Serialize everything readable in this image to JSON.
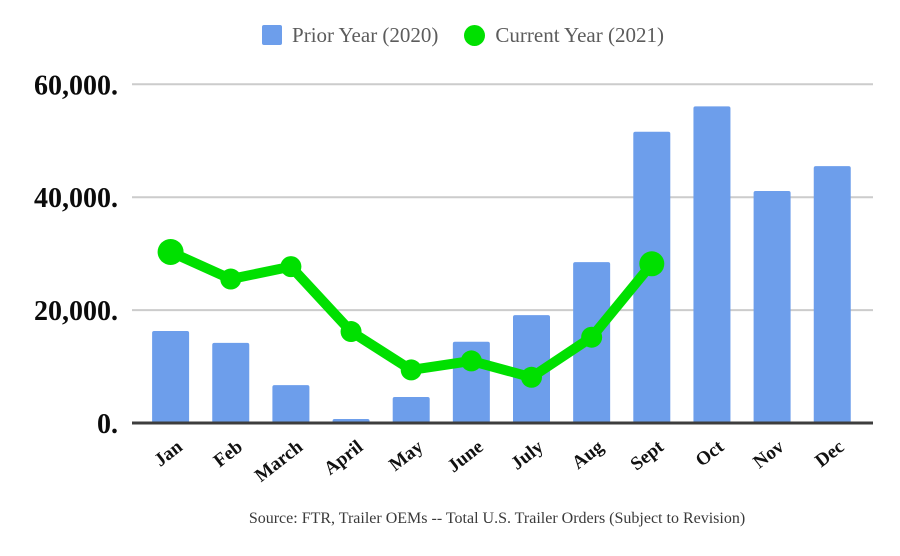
{
  "chart": {
    "legend": {
      "prior_label": "Prior Year (2020)",
      "current_label": "Current Year (2021)"
    },
    "source_note": "Source: FTR, Trailer OEMs -- Total U.S. Trailer Orders (Subject to Revision)"
  },
  "chart_data": {
    "type": "combo-bar-line",
    "title": "",
    "xlabel": "",
    "ylabel": "",
    "categories": [
      "Jan",
      "Feb",
      "March",
      "April",
      "May",
      "June",
      "July",
      "Aug",
      "Sept",
      "Oct",
      "Nov",
      "Dec"
    ],
    "series": [
      {
        "name": "Prior Year (2020)",
        "type": "bar",
        "color": "#6d9eeb",
        "values": [
          16300,
          14200,
          6700,
          700,
          4600,
          14400,
          19100,
          28500,
          51600,
          56100,
          41100,
          45500
        ]
      },
      {
        "name": "Current Year (2021)",
        "type": "line",
        "color": "#00e000",
        "values": [
          30300,
          25500,
          27700,
          16200,
          9400,
          11000,
          8100,
          15200,
          28200,
          null,
          null,
          null
        ]
      }
    ],
    "ylim": [
      0,
      60000
    ],
    "yticks": [
      0,
      20000,
      40000,
      60000
    ],
    "ytick_labels": [
      "0.",
      "20,000.",
      "40,000.",
      "60,000."
    ],
    "grid": true,
    "gridline_color": "#cccccc",
    "axis_line_color": "#3d3d3d",
    "legend_position": "top",
    "x_label_rotation_deg": -38
  }
}
